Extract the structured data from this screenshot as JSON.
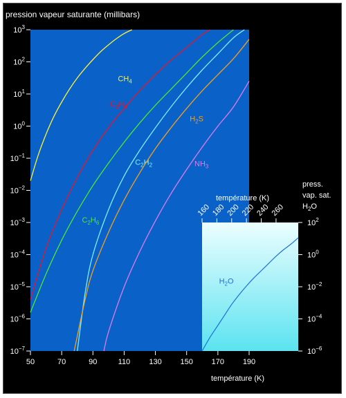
{
  "colors": {
    "background": "#000000",
    "main_plot": "#0A62C8",
    "inset_plot_top": "#ECFEFF",
    "inset_plot_bottom": "#5BE3F0",
    "text": "#FFFFFF"
  },
  "chart_data": [
    {
      "type": "line",
      "title": "pression vapeur saturante (millibars)",
      "xlabel": "température (K)",
      "ylabel": "",
      "xlim": [
        50,
        190
      ],
      "ylim_log10": [
        -7,
        3
      ],
      "y_scale": "log",
      "xticks": [
        50,
        70,
        90,
        110,
        130,
        150,
        170,
        190
      ],
      "xtick_labels": [
        "50",
        "70",
        "90",
        "110",
        "130",
        "150",
        "170",
        "190"
      ],
      "yticks_log10": [
        -7,
        -6,
        -5,
        -4,
        -3,
        -2,
        -1,
        0,
        1,
        2,
        3
      ],
      "ytick_labels": [
        {
          "base": "10",
          "exp": "−7"
        },
        {
          "base": "10",
          "exp": "−6"
        },
        {
          "base": "10",
          "exp": "−5"
        },
        {
          "base": "10",
          "exp": "−4"
        },
        {
          "base": "10",
          "exp": "−3"
        },
        {
          "base": "10",
          "exp": "−2"
        },
        {
          "base": "10",
          "exp": "−1"
        },
        {
          "base": "10",
          "exp": "0"
        },
        {
          "base": "10",
          "exp": "1"
        },
        {
          "base": "10",
          "exp": "2"
        },
        {
          "base": "10",
          "exp": "3"
        }
      ],
      "grid": false,
      "series": [
        {
          "name": "CH4",
          "label_main": "CH",
          "label_sub": "4",
          "color": "#FFF23A",
          "x": [
            50,
            55,
            60,
            65,
            70,
            75,
            80,
            85,
            90,
            95,
            100,
            105,
            110,
            115
          ],
          "y_log10": [
            -1.7,
            -0.9,
            -0.25,
            0.3,
            0.75,
            1.15,
            1.5,
            1.8,
            2.07,
            2.32,
            2.53,
            2.72,
            2.88,
            3.0
          ],
          "label_at": [
            106,
            1.4
          ]
        },
        {
          "name": "C2H4",
          "label_main": "C",
          "label_sub": "2",
          "label_mid": "H",
          "label_sub2": "4",
          "color": "#E01830",
          "x": [
            50,
            60,
            70,
            80,
            90,
            100,
            110,
            120,
            130,
            140,
            150,
            160,
            165
          ],
          "y_log10": [
            -5.4,
            -3.8,
            -2.6,
            -1.6,
            -0.75,
            -0.05,
            0.55,
            1.1,
            1.6,
            2.05,
            2.45,
            2.85,
            3.0
          ],
          "label_at": [
            101,
            0.6
          ]
        },
        {
          "name": "C2H6",
          "label_main": "C",
          "label_sub": "2",
          "label_mid": "H",
          "label_sub2": "6",
          "color": "#50E830",
          "x": [
            50,
            60,
            70,
            80,
            90,
            100,
            110,
            120,
            130,
            140,
            150,
            160,
            170,
            180
          ],
          "y_log10": [
            -5.8,
            -4.6,
            -3.55,
            -2.65,
            -1.85,
            -1.15,
            -0.5,
            0.1,
            0.65,
            1.15,
            1.65,
            2.15,
            2.6,
            3.0
          ],
          "label_at": [
            83,
            -3.0
          ]
        },
        {
          "name": "C2H2",
          "label_main": "C",
          "label_sub": "2",
          "label_mid": "H",
          "label_sub2": "2",
          "color": "#7FF0FF",
          "x": [
            80,
            85,
            90,
            100,
            110,
            120,
            130,
            140,
            150,
            160,
            170,
            180,
            187
          ],
          "y_log10": [
            -7.0,
            -5.2,
            -4.0,
            -2.6,
            -1.55,
            -0.75,
            -0.05,
            0.6,
            1.2,
            1.75,
            2.25,
            2.75,
            3.0
          ],
          "label_at": [
            117,
            -1.2
          ]
        },
        {
          "name": "H2S",
          "label_main": "H",
          "label_sub": "2",
          "label_mid": "S",
          "label_sub2": "",
          "color": "#F0A020",
          "x": [
            78,
            85,
            90,
            100,
            110,
            120,
            130,
            140,
            150,
            160,
            170,
            180,
            190
          ],
          "y_log10": [
            -7.0,
            -5.4,
            -4.5,
            -3.3,
            -2.3,
            -1.45,
            -0.7,
            -0.05,
            0.55,
            1.1,
            1.6,
            2.1,
            2.7
          ],
          "label_at": [
            152,
            0.15
          ]
        },
        {
          "name": "NH3",
          "label_main": "NH",
          "label_sub": "3",
          "label_mid": "",
          "label_sub2": "",
          "color": "#E07AF0",
          "x": [
            97,
            100,
            110,
            120,
            130,
            140,
            150,
            160,
            170,
            180,
            190
          ],
          "y_log10": [
            -7.0,
            -6.4,
            -5.0,
            -3.9,
            -2.95,
            -2.1,
            -1.35,
            -0.65,
            0.0,
            0.6,
            1.4
          ],
          "label_at": [
            155,
            -1.25
          ]
        }
      ]
    },
    {
      "type": "line",
      "title": "",
      "xlabel": "température (K)",
      "ylabel": "press. vap. sat. H2O",
      "ylabel_lines": [
        "press.",
        "vap. sat."
      ],
      "ylabel_formula": {
        "main": "H",
        "sub": "2",
        "after": "O"
      },
      "xlim": [
        160,
        290
      ],
      "xticks": [
        160,
        180,
        200,
        220,
        240,
        260
      ],
      "xtick_labels": [
        "160",
        "180",
        "200",
        "220",
        "240",
        "260"
      ],
      "y_scale": "log",
      "ylim_log10": [
        -6,
        2
      ],
      "yticks_log10": [
        -6,
        -4,
        -2,
        0,
        2
      ],
      "ytick_labels": [
        {
          "base": "10",
          "exp": "−6"
        },
        {
          "base": "10",
          "exp": "−4"
        },
        {
          "base": "10",
          "exp": "−2"
        },
        {
          "base": "10",
          "exp": "0"
        },
        {
          "base": "10",
          "exp": "2"
        }
      ],
      "grid": false,
      "series": [
        {
          "name": "H2O",
          "label_main": "H",
          "label_sub": "2",
          "label_mid": "O",
          "label_sub2": "",
          "color": "#1C6FE0",
          "x": [
            160,
            170,
            180,
            190,
            200,
            210,
            220,
            230,
            240,
            250,
            260,
            270,
            280,
            290
          ],
          "y_log10": [
            -6.0,
            -5.2,
            -4.5,
            -3.8,
            -3.1,
            -2.5,
            -1.95,
            -1.45,
            -1.0,
            -0.55,
            -0.1,
            0.3,
            0.65,
            1.05
          ],
          "label_at": [
            183,
            -1.8
          ]
        }
      ]
    }
  ]
}
